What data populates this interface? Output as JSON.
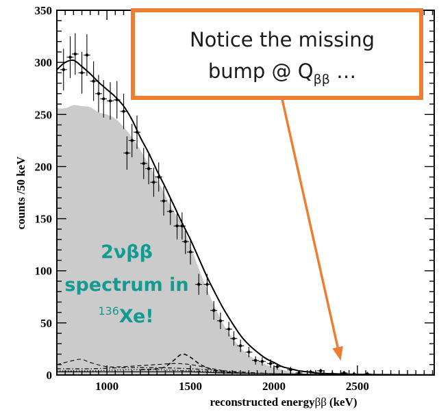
{
  "chart_data": {
    "type": "line",
    "xlabel": "reconstructed energy",
    "xlabel_beta": "ββ",
    "xlabel_unit": "(keV)",
    "ylabel": "counts /50 keV",
    "xlim": [
      700,
      2960
    ],
    "ylim": [
      0,
      350
    ],
    "x_ticks": [
      1000,
      1500,
      2000,
      2500
    ],
    "y_ticks": [
      0,
      50,
      100,
      150,
      200,
      250,
      300,
      350
    ],
    "grid": false,
    "colors": {
      "fill": "#cbcbcb",
      "callout_border": "#ed7d31",
      "callout_text": "#1a1a1a",
      "teal": "#139a91",
      "arrow": "#ed7d31"
    },
    "series": [
      {
        "kind": "shaded-area",
        "x": [
          700,
          750,
          800,
          850,
          900,
          950,
          1000,
          1050,
          1100,
          1150,
          1200,
          1250,
          1300,
          1350,
          1400,
          1450,
          1500,
          1550,
          1600,
          1650,
          1700,
          1750,
          1800,
          1850,
          1900,
          1950,
          2000,
          2050,
          2100,
          2150,
          2200,
          2250
        ],
        "values": [
          256,
          256,
          259,
          258,
          257,
          252,
          250,
          246,
          238,
          228,
          216,
          202,
          188,
          172,
          157,
          144,
          124,
          102,
          82,
          64,
          48,
          36,
          26,
          19,
          14,
          10,
          7,
          5,
          3,
          1.5,
          0.6,
          0
        ]
      },
      {
        "kind": "fit-curve",
        "x": [
          700,
          750,
          800,
          850,
          900,
          950,
          1000,
          1050,
          1100,
          1150,
          1200,
          1250,
          1300,
          1350,
          1400,
          1450,
          1500,
          1550,
          1600,
          1650,
          1700,
          1750,
          1800,
          1850,
          1900,
          1950,
          2000,
          2050,
          2100,
          2150,
          2200,
          2250,
          2300,
          2400,
          2500,
          2600,
          2700,
          2800,
          2960
        ],
        "values": [
          293,
          300,
          302,
          296,
          289,
          281,
          274,
          267,
          258,
          245,
          228,
          213,
          196,
          180,
          163,
          146,
          130,
          112,
          94,
          78,
          63,
          50,
          38,
          29,
          22,
          16,
          12,
          8,
          6,
          4,
          3,
          2,
          1.5,
          1,
          0.6,
          0.4,
          0.3,
          0.2,
          0.2
        ]
      },
      {
        "kind": "data-points",
        "x": [
          740,
          780,
          810,
          850,
          880,
          920,
          950,
          980,
          1020,
          1060,
          1100,
          1120,
          1150,
          1180,
          1220,
          1250,
          1280,
          1310,
          1340,
          1380,
          1420,
          1450,
          1470,
          1500,
          1550,
          1600,
          1640,
          1680,
          1730,
          1760,
          1800,
          1850,
          1890,
          1930,
          1980,
          2020,
          2100,
          2150,
          2220,
          2280,
          2350,
          2420,
          2480,
          2560
        ],
        "values": [
          293,
          305,
          308,
          290,
          307,
          282,
          270,
          265,
          263,
          264,
          253,
          213,
          225,
          233,
          203,
          198,
          185,
          190,
          167,
          157,
          143,
          143,
          128,
          118,
          87,
          87,
          62,
          52,
          44,
          35,
          28,
          22,
          14,
          13,
          11,
          8,
          5,
          2,
          3,
          4,
          1,
          2,
          1,
          1
        ],
        "y_error": [
          20,
          20,
          20,
          20,
          20,
          19,
          18,
          18,
          18,
          18,
          17,
          16,
          16,
          16,
          15,
          15,
          14,
          14,
          14,
          13,
          13,
          13,
          12,
          12,
          10,
          10,
          9,
          8,
          7,
          7,
          6,
          5,
          4,
          4,
          4,
          3,
          3,
          2,
          2,
          2,
          2,
          2,
          2,
          2
        ]
      },
      {
        "kind": "dashed-bump",
        "x": [
          1200,
          1300,
          1350,
          1400,
          1450,
          1500,
          1550,
          1600,
          1650,
          1700,
          1800
        ],
        "values": [
          5,
          6,
          8,
          14,
          20,
          17,
          11,
          7,
          4,
          3,
          2
        ]
      },
      {
        "kind": "dashed-low",
        "x": [
          700,
          800,
          850,
          900,
          1000,
          1100,
          1200,
          1300,
          1400,
          1500,
          1600,
          1700
        ],
        "values": [
          10,
          14,
          15,
          12,
          8,
          8,
          9,
          10,
          11,
          10,
          7,
          4
        ]
      },
      {
        "kind": "dash-dot",
        "x": [
          700,
          900,
          1100,
          1300,
          1500,
          1700,
          1900,
          2100
        ],
        "values": [
          6,
          6,
          7,
          7,
          6,
          4,
          2,
          0.5
        ]
      },
      {
        "kind": "dotted",
        "x": [
          700,
          900,
          1100,
          1300,
          1500,
          1700,
          1900
        ],
        "values": [
          4,
          4,
          5,
          5,
          4,
          3,
          1
        ]
      },
      {
        "kind": "solid-low",
        "x": [
          700,
          900,
          1100,
          1300,
          1500,
          1700,
          1900,
          2100,
          2300
        ],
        "values": [
          3,
          3,
          3,
          3,
          3,
          2,
          1.5,
          1,
          0.5
        ]
      }
    ],
    "annotations": {
      "callout_line1": "Notice the missing",
      "callout_line2_prefix": "bump @ Q",
      "callout_line2_sub": "ββ",
      "callout_line2_suffix": " …",
      "arrow_target_x": 2400,
      "label_line1": "2νββ",
      "label_line2": "spectrum in",
      "label_isotope_mass": "136",
      "label_isotope": "Xe!"
    }
  }
}
